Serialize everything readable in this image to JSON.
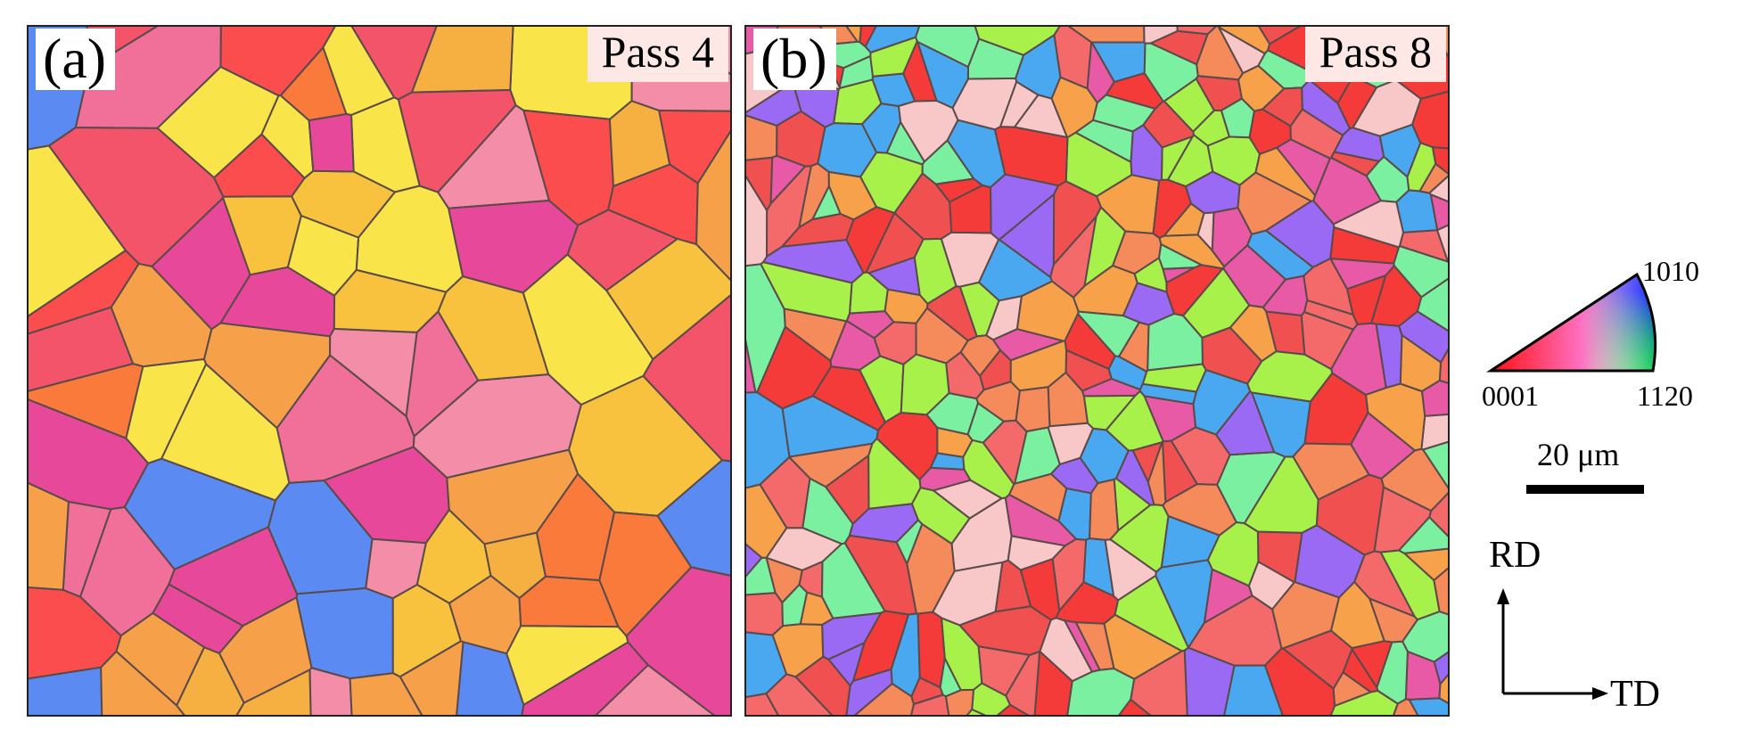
{
  "panels": [
    {
      "letter": "(a)",
      "pass": "Pass 4"
    },
    {
      "letter": "(b)",
      "pass": "Pass 8"
    }
  ],
  "ipf_legend": {
    "top": "1010",
    "left": "0001",
    "right": "1120"
  },
  "scale_bar": {
    "label": "20 μm"
  },
  "axes": {
    "vertical": "RD",
    "horizontal": "TD"
  },
  "colors": {
    "grain_boundary": "#5a4a4a",
    "panel_a_palette": [
      "#f7a04a",
      "#f6b042",
      "#f8c23e",
      "#f0709a",
      "#e8489a",
      "#f4546a",
      "#fb4d4d",
      "#f97a3a",
      "#5a8af2",
      "#f48da8",
      "#f9e54a"
    ],
    "panel_b_palette": [
      "#f53a3a",
      "#f05050",
      "#f46a6a",
      "#f58a5a",
      "#f7a24a",
      "#e85aa5",
      "#9a6af5",
      "#4aa8f0",
      "#a8f04a",
      "#7af0a0",
      "#f8c8c8"
    ]
  }
}
